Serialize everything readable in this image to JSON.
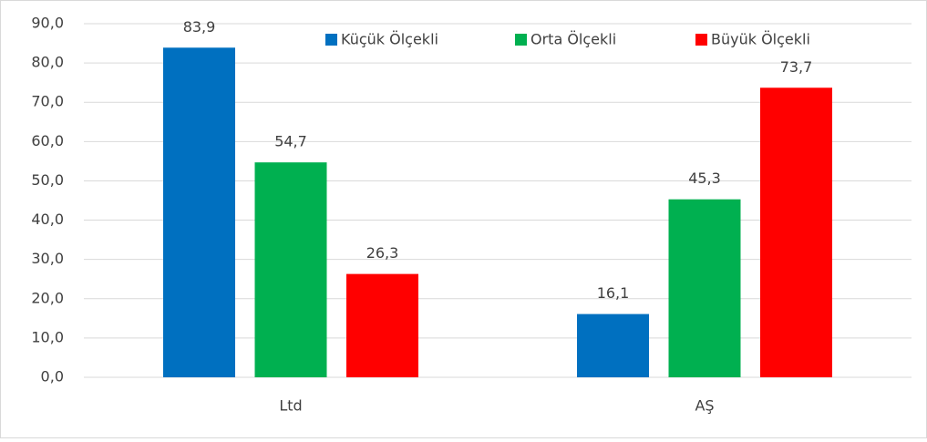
{
  "chart_data": {
    "type": "bar",
    "categories": [
      "Ltd",
      "AŞ"
    ],
    "series": [
      {
        "name": "Küçük Ölçekli",
        "color": "#0070c0",
        "values": [
          83.9,
          16.1
        ],
        "value_labels": [
          "83,9",
          "16,1"
        ]
      },
      {
        "name": "Orta Ölçekli",
        "color": "#00b050",
        "values": [
          54.7,
          45.3
        ],
        "value_labels": [
          "54,7",
          "45,3"
        ]
      },
      {
        "name": "Büyük Ölçekli",
        "color": "#ff0000",
        "values": [
          26.3,
          73.7
        ],
        "value_labels": [
          "26,3",
          "73,7"
        ]
      }
    ],
    "ylim": [
      0,
      90
    ],
    "yticks": [
      {
        "value": 0,
        "label": "0,0"
      },
      {
        "value": 10,
        "label": "10,0"
      },
      {
        "value": 20,
        "label": "20,0"
      },
      {
        "value": 30,
        "label": "30,0"
      },
      {
        "value": 40,
        "label": "40,0"
      },
      {
        "value": 50,
        "label": "50,0"
      },
      {
        "value": 60,
        "label": "60,0"
      },
      {
        "value": 70,
        "label": "70,0"
      },
      {
        "value": 80,
        "label": "80,0"
      },
      {
        "value": 90,
        "label": "90,0"
      }
    ],
    "grid": true,
    "legend": "top"
  }
}
